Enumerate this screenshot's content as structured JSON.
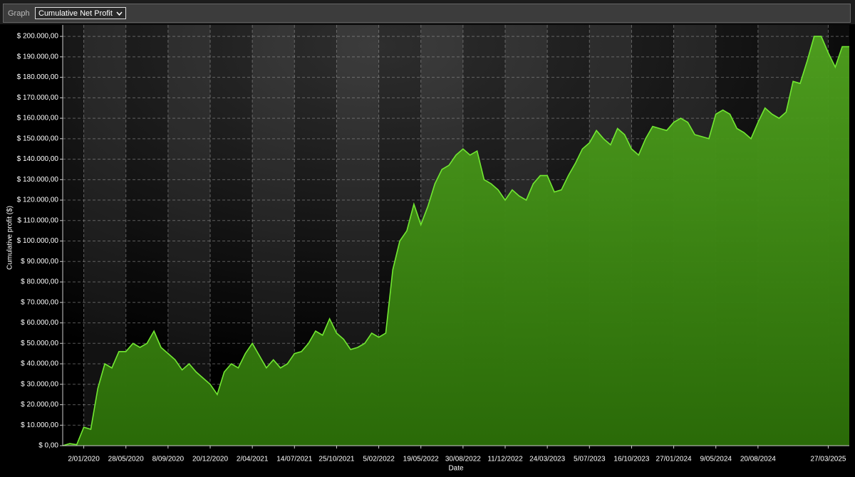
{
  "toolbar": {
    "label": "Graph",
    "selected": "Cumulative Net Profit"
  },
  "chart_data": {
    "type": "area",
    "y_label": "Cumulative profit ($)",
    "x_label": "Date",
    "categories": [
      null,
      null,
      null,
      "2/01/2020",
      null,
      null,
      null,
      null,
      null,
      "28/05/2020",
      null,
      null,
      null,
      null,
      null,
      "8/09/2020",
      null,
      null,
      null,
      null,
      null,
      "20/12/2020",
      null,
      null,
      null,
      null,
      null,
      "2/04/2021",
      null,
      null,
      null,
      null,
      null,
      "14/07/2021",
      null,
      null,
      null,
      null,
      null,
      "25/10/2021",
      null,
      null,
      null,
      null,
      null,
      "5/02/2022",
      null,
      null,
      null,
      null,
      null,
      "19/05/2022",
      null,
      null,
      null,
      null,
      null,
      "30/08/2022",
      null,
      null,
      null,
      null,
      null,
      "11/12/2022",
      null,
      null,
      null,
      null,
      null,
      "24/03/2023",
      null,
      null,
      null,
      null,
      null,
      "5/07/2023",
      null,
      null,
      null,
      null,
      null,
      "16/10/2023",
      null,
      null,
      null,
      null,
      null,
      "27/01/2024",
      null,
      null,
      null,
      null,
      null,
      "9/05/2024",
      null,
      null,
      null,
      null,
      null,
      "20/08/2024",
      null,
      null,
      null,
      null,
      null,
      null,
      null,
      null,
      null,
      "27/03/2025",
      null,
      null,
      null
    ],
    "values": [
      0,
      1000,
      500,
      9000,
      8000,
      28000,
      40000,
      38000,
      46000,
      46000,
      50000,
      48000,
      50000,
      56000,
      48000,
      45000,
      42000,
      37000,
      40000,
      36000,
      33000,
      30000,
      25000,
      36000,
      40000,
      38000,
      45000,
      50000,
      44000,
      38000,
      42000,
      38000,
      40000,
      45000,
      46000,
      50000,
      56000,
      54000,
      62000,
      55000,
      52000,
      47000,
      48000,
      50000,
      55000,
      53000,
      55000,
      86000,
      100000,
      105000,
      118000,
      108000,
      117000,
      128000,
      135000,
      137000,
      142000,
      145000,
      142000,
      144000,
      130000,
      128000,
      125000,
      120000,
      125000,
      122000,
      120000,
      128000,
      132000,
      132000,
      124000,
      125000,
      132000,
      138000,
      145000,
      148000,
      154000,
      150000,
      147000,
      155000,
      152000,
      145000,
      142000,
      150000,
      156000,
      155000,
      154000,
      158000,
      160000,
      158000,
      152000,
      151000,
      150000,
      162000,
      164000,
      162000,
      155000,
      153000,
      150000,
      158000,
      165000,
      162000,
      160000,
      163000,
      178000,
      177000,
      188000,
      200000,
      200000,
      192000,
      185000,
      195000,
      195000
    ],
    "color": "#72e832",
    "ylim": [
      0,
      205600
    ],
    "yticks": [
      {
        "value": 0,
        "label": "$ 0,00"
      },
      {
        "value": 10000,
        "label": "$ 10.000,00"
      },
      {
        "value": 20000,
        "label": "$ 20.000,00"
      },
      {
        "value": 30000,
        "label": "$ 30.000,00"
      },
      {
        "value": 40000,
        "label": "$ 40.000,00"
      },
      {
        "value": 50000,
        "label": "$ 50.000,00"
      },
      {
        "value": 60000,
        "label": "$ 60.000,00"
      },
      {
        "value": 70000,
        "label": "$ 70.000,00"
      },
      {
        "value": 80000,
        "label": "$ 80.000,00"
      },
      {
        "value": 90000,
        "label": "$ 90.000,00"
      },
      {
        "value": 100000,
        "label": "$ 100.000,00"
      },
      {
        "value": 110000,
        "label": "$ 110.000,00"
      },
      {
        "value": 120000,
        "label": "$ 120.000,00"
      },
      {
        "value": 130000,
        "label": "$ 130.000,00"
      },
      {
        "value": 140000,
        "label": "$ 140.000,00"
      },
      {
        "value": 150000,
        "label": "$ 150.000,00"
      },
      {
        "value": 160000,
        "label": "$ 160.000,00"
      },
      {
        "value": 170000,
        "label": "$ 170.000,00"
      },
      {
        "value": 180000,
        "label": "$ 180.000,00"
      },
      {
        "value": 190000,
        "label": "$ 190.000,00"
      },
      {
        "value": 200000,
        "label": "$ 200.000,00"
      }
    ],
    "grid": true
  }
}
